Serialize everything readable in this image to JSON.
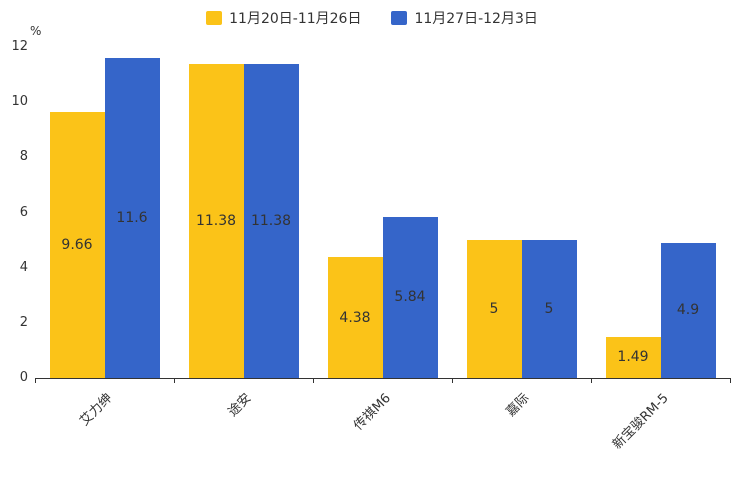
{
  "chart_data": {
    "type": "bar",
    "title": "",
    "ylabel": "%",
    "xlabel": "",
    "ylim": [
      0,
      12
    ],
    "ytick_step": 2,
    "grid": false,
    "legend_position": "top-center",
    "categories": [
      "艾力绅",
      "途安",
      "传祺M6",
      "嘉际",
      "新宝骏RM-5"
    ],
    "series": [
      {
        "name": "11月20日-11月26日",
        "color": "#FBC318",
        "values": [
          9.66,
          11.38,
          4.38,
          5,
          1.49
        ]
      },
      {
        "name": "11月27日-12月3日",
        "color": "#3565C9",
        "values": [
          11.6,
          11.38,
          5.84,
          5,
          4.9
        ]
      }
    ],
    "bar_labels": [
      [
        "9.66",
        "11.38",
        "4.38",
        "5",
        "1.49"
      ],
      [
        "11.6",
        "11.38",
        "5.84",
        "5",
        "4.9"
      ]
    ]
  },
  "style": {
    "axis_color": "#333333",
    "label_color": "#333333",
    "background": "#ffffff"
  }
}
